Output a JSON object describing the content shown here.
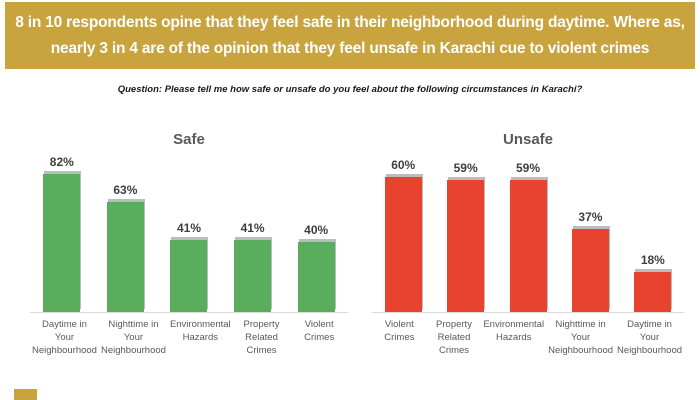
{
  "banner": {
    "line1": "8 in 10 respondents opine that they feel safe in their neighborhood during daytime. Where as,",
    "line2": "nearly 3 in 4 are of the opinion that they feel unsafe in Karachi cue to violent crimes",
    "bg_color": "#C9A43E",
    "text_color": "#FFFFFF"
  },
  "question": "Question: Please tell me how safe or unsafe do you feel about the following circumstances in Karachi?",
  "chart_data": [
    {
      "type": "bar",
      "title": "Safe",
      "categories": [
        "Daytime in Your Neighbourhood",
        "Nighttime in Your Neighbourhood",
        "Environmental Hazards",
        "Property Related Crimes",
        "Violent Crimes"
      ],
      "values": [
        82,
        63,
        41,
        41,
        40
      ],
      "value_labels": [
        "82%",
        "63%",
        "41%",
        "41%",
        "40%"
      ],
      "bar_color": "#5AAD5B",
      "ylim": [
        0,
        90
      ],
      "xlabel": "",
      "ylabel": "",
      "grid": false,
      "legend": "none"
    },
    {
      "type": "bar",
      "title": "Unsafe",
      "categories": [
        "Violent Crimes",
        "Property Related Crimes",
        "Environmental Hazards",
        "Nighttime in Your Neighbourhood",
        "Daytime in Your Neighbourhood"
      ],
      "values": [
        60,
        59,
        59,
        37,
        18
      ],
      "value_labels": [
        "60%",
        "59%",
        "59%",
        "37%",
        "18%"
      ],
      "bar_color": "#E8432F",
      "ylim": [
        0,
        70
      ],
      "xlabel": "",
      "ylabel": "",
      "grid": false,
      "legend": "none"
    }
  ],
  "decoration": {
    "corner_square_color": "#C9A43E"
  }
}
